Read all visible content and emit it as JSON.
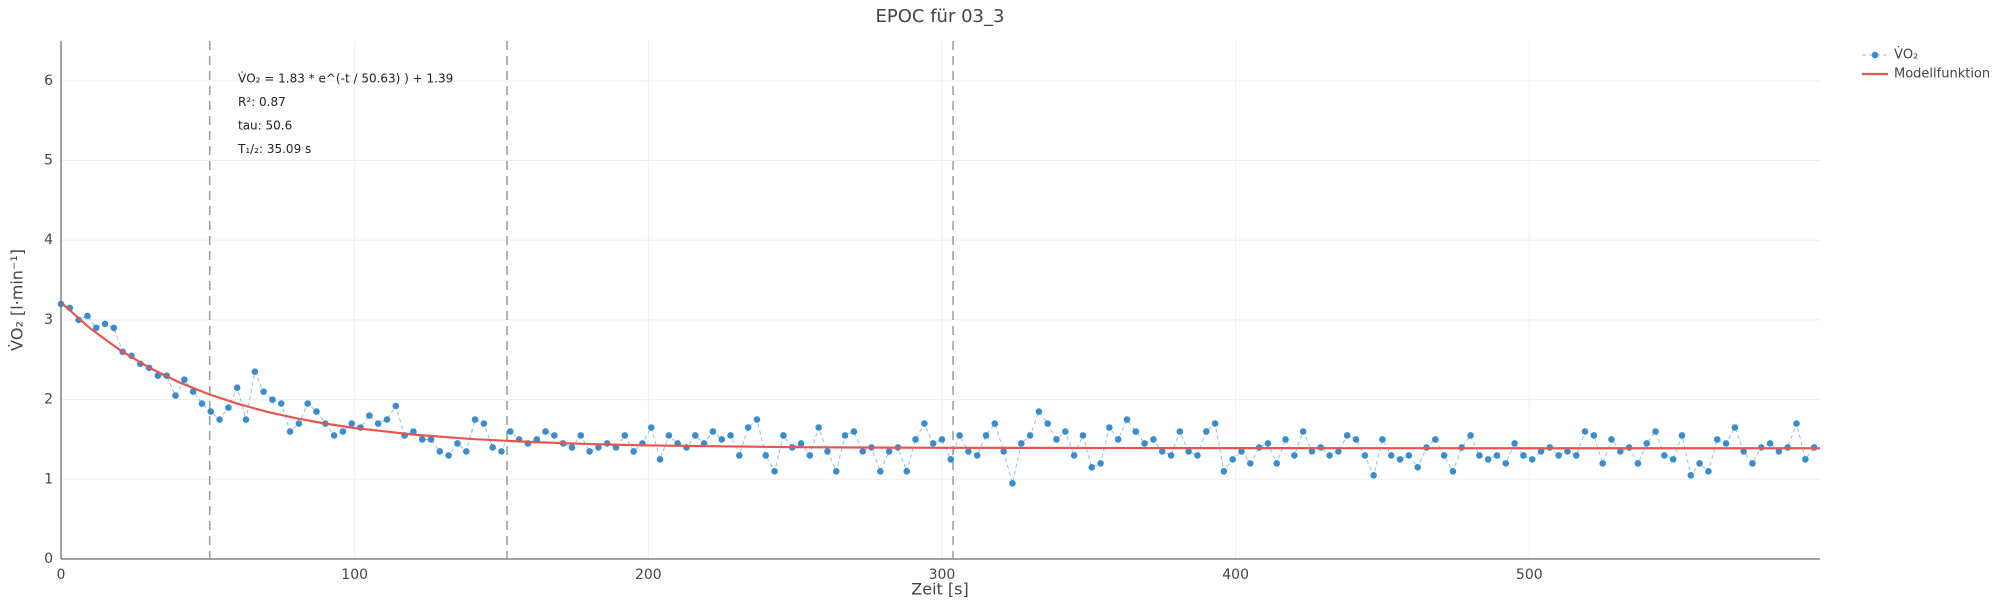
{
  "chart_data": {
    "type": "scatter",
    "title": "EPOC für 03_3",
    "x_label": "Zeit [s]",
    "y_label": "V̇O₂ [l·min⁻¹]",
    "xlim": [
      0,
      599
    ],
    "ylim": [
      0,
      6.5
    ],
    "xticks": [
      0,
      100,
      200,
      300,
      400,
      500
    ],
    "yticks": [
      0,
      1,
      2,
      3,
      4,
      5,
      6
    ],
    "grid": true,
    "legend": "top-right",
    "vlines": [
      50.63,
      151.89,
      303.78
    ],
    "annotations": [
      "V̇O₂ = 1.83 * e^(-t / 50.63) ) + 1.39",
      "R²: 0.87",
      "tau: 50.6",
      "T₁/₂: 35.09 s"
    ],
    "series": [
      {
        "name": "V̇O₂",
        "color": "#3a8ccc",
        "x": [
          0,
          3,
          6,
          9,
          12,
          15,
          18,
          21,
          24,
          27,
          30,
          33,
          36,
          39,
          42,
          45,
          48,
          51,
          54,
          57,
          60,
          63,
          66,
          69,
          72,
          75,
          78,
          81,
          84,
          87,
          90,
          93,
          96,
          99,
          102,
          105,
          108,
          111,
          114,
          117,
          120,
          123,
          126,
          129,
          132,
          135,
          138,
          141,
          144,
          147,
          150,
          153,
          156,
          159,
          162,
          165,
          168,
          171,
          174,
          177,
          180,
          183,
          186,
          189,
          192,
          195,
          198,
          201,
          204,
          207,
          210,
          213,
          216,
          219,
          222,
          225,
          228,
          231,
          234,
          237,
          240,
          243,
          246,
          249,
          252,
          255,
          258,
          261,
          264,
          267,
          270,
          273,
          276,
          279,
          282,
          285,
          288,
          291,
          294,
          297,
          300,
          303,
          306,
          309,
          312,
          315,
          318,
          321,
          324,
          327,
          330,
          333,
          336,
          339,
          342,
          345,
          348,
          351,
          354,
          357,
          360,
          363,
          366,
          369,
          372,
          375,
          378,
          381,
          384,
          387,
          390,
          393,
          396,
          399,
          402,
          405,
          408,
          411,
          414,
          417,
          420,
          423,
          426,
          429,
          432,
          435,
          438,
          441,
          444,
          447,
          450,
          453,
          456,
          459,
          462,
          465,
          468,
          471,
          474,
          477,
          480,
          483,
          486,
          489,
          492,
          495,
          498,
          501,
          504,
          507,
          510,
          513,
          516,
          519,
          522,
          525,
          528,
          531,
          534,
          537,
          540,
          543,
          546,
          549,
          552,
          555,
          558,
          561,
          564,
          567,
          570,
          573,
          576,
          579,
          582,
          585,
          588,
          591,
          594,
          597
        ],
        "values": [
          3.2,
          3.15,
          3.0,
          3.05,
          2.9,
          2.95,
          2.9,
          2.6,
          2.55,
          2.45,
          2.4,
          2.3,
          2.3,
          2.05,
          2.25,
          2.1,
          1.95,
          1.85,
          1.75,
          1.9,
          2.15,
          1.75,
          2.35,
          2.1,
          2.0,
          1.95,
          1.6,
          1.7,
          1.95,
          1.85,
          1.7,
          1.55,
          1.6,
          1.7,
          1.65,
          1.8,
          1.7,
          1.75,
          1.92,
          1.55,
          1.6,
          1.5,
          1.5,
          1.35,
          1.3,
          1.45,
          1.35,
          1.75,
          1.7,
          1.4,
          1.35,
          1.6,
          1.5,
          1.45,
          1.5,
          1.6,
          1.55,
          1.45,
          1.4,
          1.55,
          1.35,
          1.4,
          1.45,
          1.4,
          1.55,
          1.35,
          1.45,
          1.65,
          1.25,
          1.55,
          1.45,
          1.4,
          1.55,
          1.45,
          1.6,
          1.5,
          1.55,
          1.3,
          1.65,
          1.75,
          1.3,
          1.1,
          1.55,
          1.4,
          1.45,
          1.3,
          1.65,
          1.35,
          1.1,
          1.55,
          1.6,
          1.35,
          1.4,
          1.1,
          1.35,
          1.4,
          1.1,
          1.5,
          1.7,
          1.45,
          1.5,
          1.25,
          1.55,
          1.35,
          1.3,
          1.55,
          1.7,
          1.35,
          0.95,
          1.45,
          1.55,
          1.85,
          1.7,
          1.5,
          1.6,
          1.3,
          1.55,
          1.15,
          1.2,
          1.65,
          1.5,
          1.75,
          1.6,
          1.45,
          1.5,
          1.35,
          1.3,
          1.6,
          1.35,
          1.3,
          1.6,
          1.7,
          1.1,
          1.25,
          1.35,
          1.2,
          1.4,
          1.45,
          1.2,
          1.5,
          1.3,
          1.6,
          1.35,
          1.4,
          1.3,
          1.35,
          1.55,
          1.5,
          1.3,
          1.05,
          1.5,
          1.3,
          1.25,
          1.3,
          1.15,
          1.4,
          1.5,
          1.3,
          1.1,
          1.4,
          1.55,
          1.3,
          1.25,
          1.3,
          1.2,
          1.45,
          1.3,
          1.25,
          1.35,
          1.4,
          1.3,
          1.35,
          1.3,
          1.6,
          1.55,
          1.2,
          1.5,
          1.35,
          1.4,
          1.2,
          1.45,
          1.6,
          1.3,
          1.25,
          1.55,
          1.05,
          1.2,
          1.1,
          1.5,
          1.45,
          1.65,
          1.35,
          1.2,
          1.4,
          1.45,
          1.35,
          1.4,
          1.7,
          1.25,
          1.4
        ]
      },
      {
        "name": "Modellfunktion",
        "color": "#e8554e",
        "x": [
          0,
          10,
          20,
          30,
          40,
          50,
          60,
          70,
          80,
          90,
          100,
          120,
          140,
          160,
          180,
          200,
          250,
          300,
          400,
          500,
          599
        ],
        "values": [
          3.22,
          2.892,
          2.623,
          2.402,
          2.221,
          2.072,
          1.95,
          1.849,
          1.767,
          1.699,
          1.644,
          1.561,
          1.505,
          1.468,
          1.442,
          1.425,
          1.403,
          1.395,
          1.391,
          1.39,
          1.39
        ]
      }
    ]
  }
}
